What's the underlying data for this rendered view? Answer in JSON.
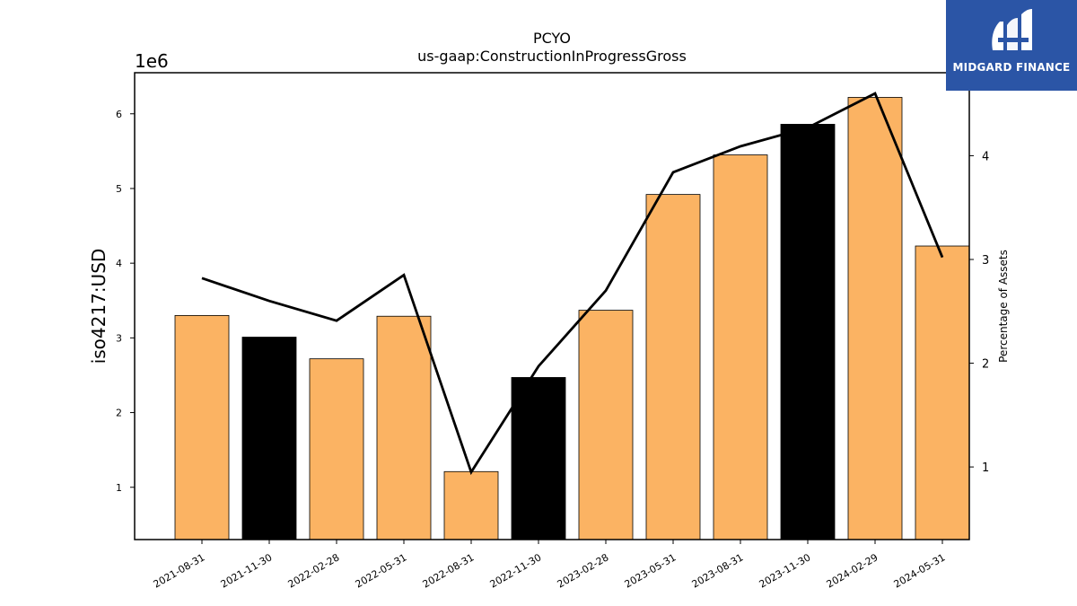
{
  "chart_data": {
    "type": "bar",
    "title": "PCYO",
    "subtitle": "us-gaap:ConstructionInProgressGross",
    "ylabel": "iso4217:USD",
    "y_offset_label": "1e6",
    "y2label": "Percentage of Assets",
    "categories": [
      "2021-08-31",
      "2021-11-30",
      "2022-02-28",
      "2022-05-31",
      "2022-08-31",
      "2022-11-30",
      "2023-02-28",
      "2023-05-31",
      "2023-08-31",
      "2023-11-30",
      "2024-02-29",
      "2024-05-31"
    ],
    "values": [
      3300000,
      3010000,
      2720000,
      3290000,
      1210000,
      2470000,
      3370000,
      4920000,
      5450000,
      5860000,
      6220000,
      4230000
    ],
    "bar_colors": [
      "#fbb363",
      "#000000",
      "#fbb363",
      "#fbb363",
      "#fbb363",
      "#000000",
      "#fbb363",
      "#fbb363",
      "#fbb363",
      "#000000",
      "#fbb363",
      "#fbb363"
    ],
    "percentage_of_assets": [
      2.82,
      2.6,
      2.41,
      2.85,
      0.95,
      1.97,
      2.7,
      3.84,
      4.09,
      4.27,
      4.6,
      3.02
    ],
    "ylim": [
      300000,
      6550000
    ],
    "y2lim": [
      0.3,
      4.8
    ],
    "yticks": [
      1,
      2,
      3,
      4,
      5,
      6
    ],
    "y2ticks": [
      1,
      2,
      3,
      4
    ],
    "line_color": "#000000",
    "grid": false
  },
  "logo": {
    "text": "MIDGARD FINANCE",
    "color": "#2b55a6"
  }
}
